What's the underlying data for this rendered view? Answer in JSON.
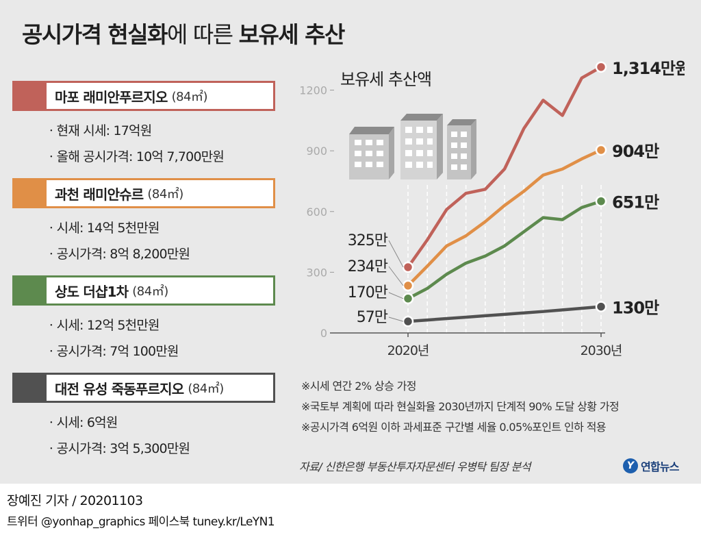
{
  "title": {
    "part1": "공시가격 현실화",
    "part2": "에 따른 ",
    "part3": "보유세 추산"
  },
  "properties": [
    {
      "name": "마포 래미안푸르지오",
      "area": "(84㎡)",
      "color": "#c0625a",
      "lines": [
        "ㆍ현재 시세: 17억원",
        "ㆍ올해 공시가격: 10억 7,700만원"
      ]
    },
    {
      "name": "과천 래미안슈르",
      "area": "(84㎡)",
      "color": "#e08f47",
      "lines": [
        "ㆍ시세: 14억 5천만원",
        "ㆍ공시가격: 8억 8,200만원"
      ]
    },
    {
      "name": "상도 더샵1차",
      "area": "(84㎡)",
      "color": "#5d8a4e",
      "lines": [
        "ㆍ시세: 12억 5천만원",
        "ㆍ공시가격: 7억 100만원"
      ]
    },
    {
      "name": "대전 유성 죽동푸르지오",
      "area": "(84㎡)",
      "color": "#515151",
      "lines": [
        "ㆍ시세: 6억원",
        "ㆍ공시가격: 3억 5,300만원"
      ]
    }
  ],
  "chart_data": {
    "type": "line",
    "title": "보유세 추산액",
    "x_tick_labels": [
      "2020년",
      "2030년"
    ],
    "x": [
      2020,
      2021,
      2022,
      2023,
      2024,
      2025,
      2026,
      2027,
      2028,
      2029,
      2030
    ],
    "y_ticks": [
      0,
      300,
      600,
      900,
      1200
    ],
    "ylim": [
      0,
      1300
    ],
    "grid": "vertical dashed",
    "series": [
      {
        "color": "#c0625a",
        "values": [
          325,
          460,
          610,
          690,
          710,
          810,
          1010,
          1150,
          1075,
          1260,
          1314
        ],
        "start_label": "325만",
        "end_label": "1,314만원"
      },
      {
        "color": "#e08f47",
        "values": [
          234,
          330,
          430,
          480,
          550,
          630,
          700,
          780,
          810,
          860,
          904
        ],
        "start_label": "234만",
        "end_label": "904만"
      },
      {
        "color": "#5d8a4e",
        "values": [
          170,
          220,
          290,
          345,
          380,
          430,
          500,
          570,
          560,
          620,
          651
        ],
        "start_label": "170만",
        "end_label": "651만"
      },
      {
        "color": "#515151",
        "values": [
          57,
          64,
          71,
          78,
          85,
          92,
          99,
          106,
          114,
          122,
          130
        ],
        "start_label": "57만",
        "end_label": "130만"
      }
    ]
  },
  "notes": [
    "※시세 연간 2% 상승 가정",
    "※국토부 계획에 따라 현실화율 2030년까지 단계적 90% 도달 상황 가정",
    "※공시가격 6억원 이하 과세표준 구간별 세율 0.05%포인트 인하 적용"
  ],
  "source": "자료/ 신한은행 부동산투자자문센터 우병탁 팀장 분석",
  "logo": {
    "mark": "Y",
    "text": "연합뉴스"
  },
  "byline": "장예진 기자 / 20201103",
  "social": "트위터 @yonhap_graphics  페이스북 tuney.kr/LeYN1"
}
